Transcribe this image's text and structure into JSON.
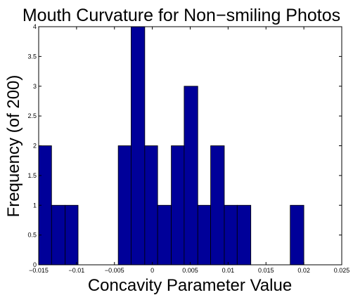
{
  "chart_data": {
    "type": "bar",
    "title": "Mouth Curvature for Non−smiling Photos",
    "xlabel": "Concavity Parameter Value",
    "ylabel": "Frequency (of 200)",
    "xlim": [
      -0.015,
      0.025
    ],
    "ylim": [
      0,
      4
    ],
    "bar_color": "#000099",
    "xticks": [
      "−0.015",
      "−0.01",
      "−0.005",
      "0",
      "0.005",
      "0.01",
      "0.015",
      "0.02",
      "0.025"
    ],
    "xtick_values": [
      -0.015,
      -0.01,
      -0.005,
      0,
      0.005,
      0.01,
      0.015,
      0.02,
      0.025
    ],
    "yticks": [
      "0",
      "0.5",
      "1",
      "1.5",
      "2",
      "2.5",
      "3",
      "3.5",
      "4"
    ],
    "ytick_values": [
      0,
      0.5,
      1,
      1.5,
      2,
      2.5,
      3,
      3.5,
      4
    ],
    "bins": [
      {
        "x0": -0.015,
        "x1": -0.0133,
        "value": 2
      },
      {
        "x0": -0.0133,
        "x1": -0.0115,
        "value": 1
      },
      {
        "x0": -0.0115,
        "x1": -0.0098,
        "value": 1
      },
      {
        "x0": -0.0098,
        "x1": -0.008,
        "value": 0
      },
      {
        "x0": -0.008,
        "x1": -0.0063,
        "value": 0
      },
      {
        "x0": -0.0063,
        "x1": -0.0045,
        "value": 0
      },
      {
        "x0": -0.0045,
        "x1": -0.0028,
        "value": 2
      },
      {
        "x0": -0.0028,
        "x1": -0.001,
        "value": 4
      },
      {
        "x0": -0.001,
        "x1": 0.0007,
        "value": 2
      },
      {
        "x0": 0.0007,
        "x1": 0.0025,
        "value": 1
      },
      {
        "x0": 0.0025,
        "x1": 0.0042,
        "value": 2
      },
      {
        "x0": 0.0042,
        "x1": 0.006,
        "value": 3
      },
      {
        "x0": 0.006,
        "x1": 0.0077,
        "value": 1
      },
      {
        "x0": 0.0077,
        "x1": 0.0095,
        "value": 2
      },
      {
        "x0": 0.0095,
        "x1": 0.0112,
        "value": 1
      },
      {
        "x0": 0.0112,
        "x1": 0.013,
        "value": 1
      },
      {
        "x0": 0.013,
        "x1": 0.0147,
        "value": 0
      },
      {
        "x0": 0.0147,
        "x1": 0.0165,
        "value": 0
      },
      {
        "x0": 0.0165,
        "x1": 0.0182,
        "value": 0
      },
      {
        "x0": 0.0182,
        "x1": 0.02,
        "value": 1
      }
    ]
  }
}
